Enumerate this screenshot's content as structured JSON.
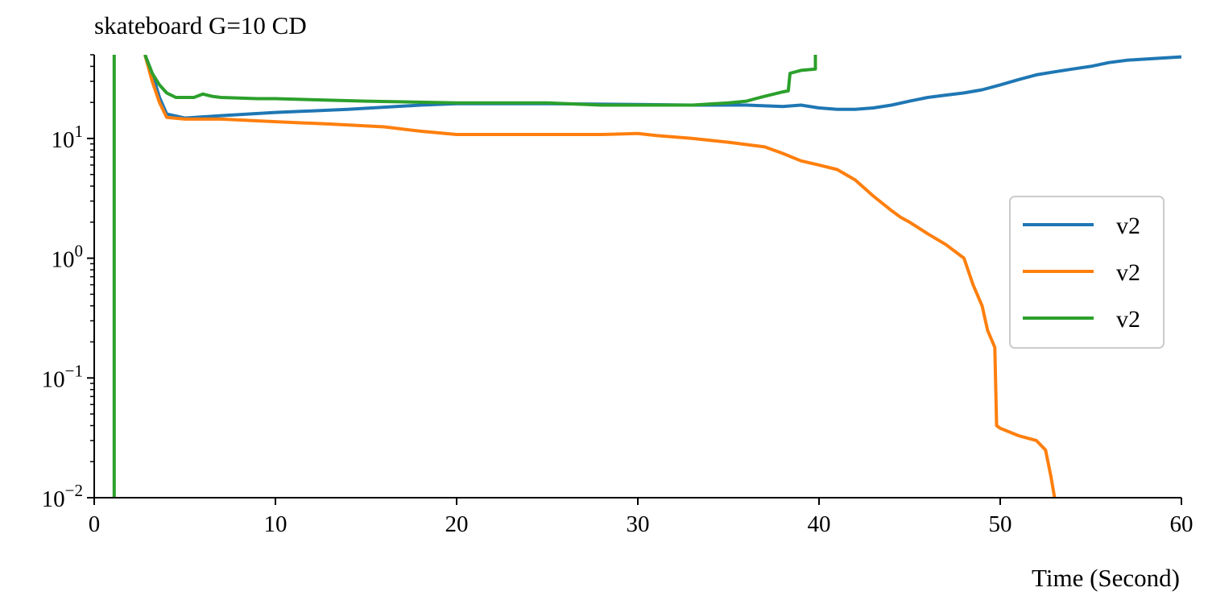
{
  "chart_data": {
    "type": "line",
    "title": "skateboard G=10 CD",
    "xlabel": "Time (Second)",
    "ylabel": "",
    "xlim": [
      0,
      60
    ],
    "ylim": [
      0.01,
      50
    ],
    "yscale": "log",
    "grid": false,
    "legend_position": "right",
    "x_ticks": [
      0,
      10,
      20,
      30,
      40,
      50,
      60
    ],
    "x_tick_labels": [
      "0",
      "10",
      "20",
      "30",
      "40",
      "50",
      "60"
    ],
    "y_ticks": [
      0.01,
      0.1,
      1,
      10
    ],
    "y_tick_labels": [
      {
        "base": "10",
        "exp": "−2"
      },
      {
        "base": "10",
        "exp": "−1"
      },
      {
        "base": "10",
        "exp": "0"
      },
      {
        "base": "10",
        "exp": "1"
      }
    ],
    "series": [
      {
        "name": "v2",
        "color": "#1f77b4",
        "x": [
          2.8,
          3.2,
          3.6,
          4.0,
          5.0,
          7.0,
          10.0,
          14.0,
          18.0,
          20.0,
          25.0,
          30.0,
          33.0,
          36.0,
          38.0,
          39.0,
          40.0,
          41.0,
          42.0,
          43.0,
          44.0,
          45.0,
          46.0,
          47.0,
          48.0,
          49.0,
          50.0,
          51.0,
          52.0,
          53.0,
          54.0,
          55.0,
          56.0,
          57.0,
          58.0,
          59.0,
          60.0
        ],
        "y": [
          50,
          35,
          22,
          16,
          14.8,
          15.5,
          16.5,
          17.5,
          19,
          19.5,
          19.5,
          19.2,
          19.0,
          19.0,
          18.5,
          19.0,
          18.0,
          17.5,
          17.5,
          18.0,
          19.0,
          20.5,
          22,
          23,
          24,
          25.5,
          28,
          31,
          34,
          36,
          38,
          40,
          43,
          45,
          46,
          47,
          48
        ]
      },
      {
        "name": "v2",
        "color": "#ff7f0e",
        "x": [
          2.8,
          3.2,
          3.6,
          4.0,
          5.0,
          7.0,
          10.0,
          13.0,
          16.0,
          18.0,
          20.0,
          22.0,
          25.0,
          28.0,
          30.0,
          31.0,
          33.0,
          35.0,
          37.0,
          38.0,
          39.0,
          40.0,
          41.0,
          42.0,
          43.0,
          44.0,
          44.5,
          45.0,
          46.0,
          47.0,
          48.0,
          48.5,
          49.0,
          49.3,
          49.7,
          49.8,
          50.0,
          51.0,
          52.0,
          52.5,
          52.8,
          53.0
        ],
        "y": [
          50,
          30,
          20,
          15,
          14.5,
          14.5,
          13.8,
          13.2,
          12.5,
          11.5,
          10.8,
          10.8,
          10.8,
          10.8,
          11.0,
          10.6,
          10.0,
          9.3,
          8.5,
          7.5,
          6.5,
          6.0,
          5.5,
          4.5,
          3.3,
          2.5,
          2.2,
          2.0,
          1.6,
          1.3,
          1.0,
          0.6,
          0.4,
          0.25,
          0.18,
          0.04,
          0.038,
          0.033,
          0.03,
          0.025,
          0.015,
          0.01
        ]
      },
      {
        "name": "v2",
        "color": "#2ca02c",
        "x": [
          2.8,
          3.2,
          3.6,
          4.0,
          4.5,
          5.5,
          6.0,
          6.5,
          7.0,
          9.0,
          10.0,
          15.0,
          20.0,
          25.0,
          28.0,
          30.0,
          33.0,
          35.0,
          36.0,
          36.5,
          37.0,
          37.5,
          38.0,
          38.3,
          38.4,
          39.0,
          39.8,
          39.8
        ],
        "y": [
          50,
          35,
          28,
          24,
          22,
          22,
          23.5,
          22.5,
          22,
          21.5,
          21.5,
          20.5,
          19.8,
          19.8,
          19.0,
          19.0,
          19.0,
          19.8,
          20.5,
          21.5,
          22.5,
          23.5,
          24.5,
          25,
          35,
          37,
          38,
          50
        ]
      },
      {
        "name": "",
        "legend": false,
        "color": "#2ca02c",
        "x": [
          1.1,
          1.1
        ],
        "y": [
          0.01,
          50
        ]
      }
    ]
  }
}
